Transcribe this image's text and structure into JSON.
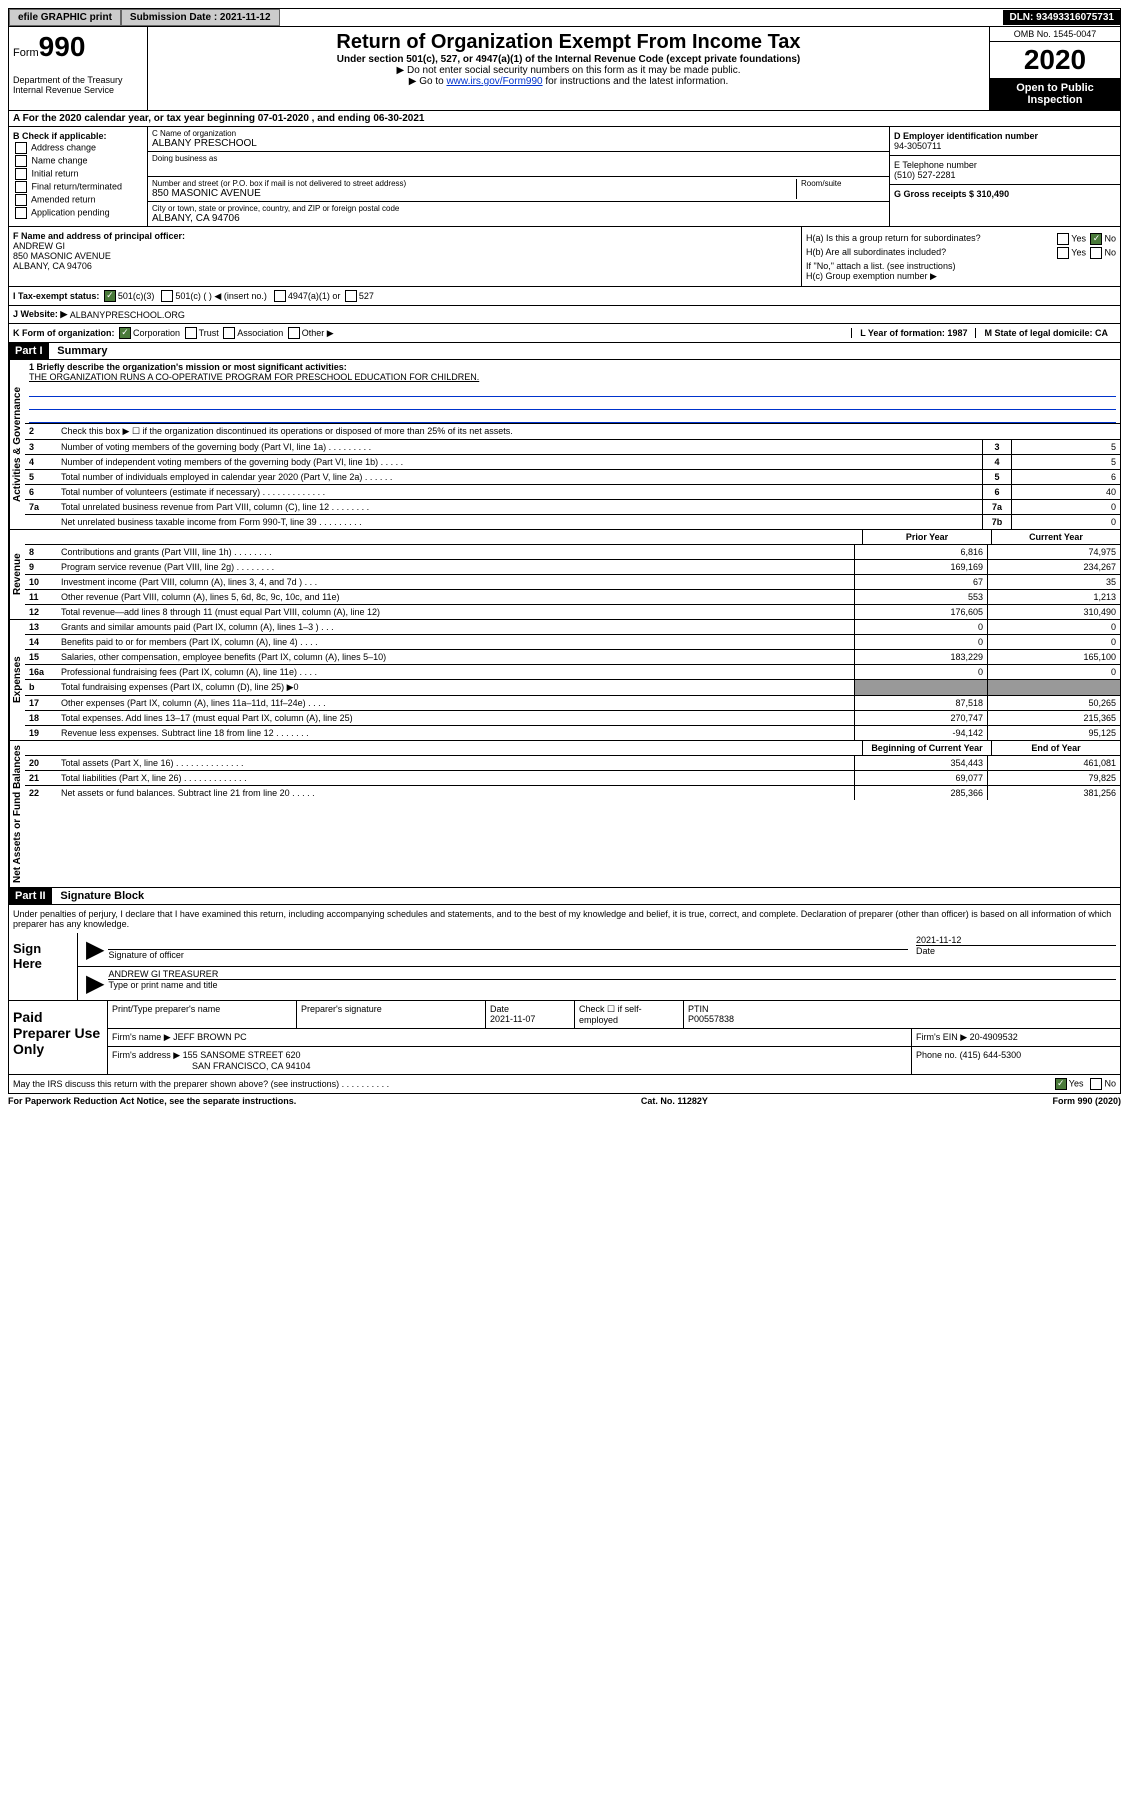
{
  "topbar": {
    "efile_label": "efile GRAPHIC print",
    "submission_label": "Submission Date : 2021-11-12",
    "dln_label": "DLN: 93493316075731"
  },
  "header": {
    "form_label": "Form",
    "form_number": "990",
    "dept": "Department of the Treasury Internal Revenue Service",
    "main_title": "Return of Organization Exempt From Income Tax",
    "sub1": "Under section 501(c), 527, or 4947(a)(1) of the Internal Revenue Code (except private foundations)",
    "sub2": "▶ Do not enter social security numbers on this form as it may be made public.",
    "sub3_prefix": "▶ Go to ",
    "sub3_link": "www.irs.gov/Form990",
    "sub3_suffix": " for instructions and the latest information.",
    "omb": "OMB No. 1545-0047",
    "year": "2020",
    "open_public": "Open to Public Inspection"
  },
  "section_a": "A For the 2020 calendar year, or tax year beginning 07-01-2020    , and ending 06-30-2021",
  "col_b": {
    "header": "B Check if applicable:",
    "opts": [
      "Address change",
      "Name change",
      "Initial return",
      "Final return/terminated",
      "Amended return",
      "Application pending"
    ]
  },
  "org": {
    "name_label": "C Name of organization",
    "name": "ALBANY PRESCHOOL",
    "dba_label": "Doing business as",
    "addr_label": "Number and street (or P.O. box if mail is not delivered to street address)",
    "room_label": "Room/suite",
    "addr": "850 MASONIC AVENUE",
    "city_label": "City or town, state or province, country, and ZIP or foreign postal code",
    "city": "ALBANY, CA  94706"
  },
  "col_de": {
    "d_label": "D Employer identification number",
    "d_val": "94-3050711",
    "e_label": "E Telephone number",
    "e_val": "(510) 527-2281",
    "g_label": "G Gross receipts $ 310,490"
  },
  "f": {
    "label": "F  Name and address of principal officer:",
    "name": "ANDREW GI",
    "addr1": "850 MASONIC AVENUE",
    "addr2": "ALBANY, CA  94706"
  },
  "h": {
    "a_label": "H(a)  Is this a group return for subordinates?",
    "a_yes": "Yes",
    "a_no": "No",
    "b_label": "H(b)  Are all subordinates included?",
    "b_note": "If \"No,\" attach a list. (see instructions)",
    "c_label": "H(c)  Group exemption number ▶"
  },
  "i": {
    "label": "I  Tax-exempt status:",
    "o1": "501(c)(3)",
    "o2": "501(c) (  ) ◀ (insert no.)",
    "o3": "4947(a)(1) or",
    "o4": "527"
  },
  "j": {
    "label": "J  Website: ▶",
    "val": "ALBANYPRESCHOOL.ORG"
  },
  "k": {
    "label": "K Form of organization:",
    "o1": "Corporation",
    "o2": "Trust",
    "o3": "Association",
    "o4": "Other ▶"
  },
  "l": {
    "label": "L Year of formation: 1987"
  },
  "m": {
    "label": "M State of legal domicile: CA"
  },
  "part1": {
    "header": "Part I",
    "title": "Summary",
    "vert1": "Activities & Governance",
    "vert2": "Revenue",
    "vert3": "Expenses",
    "vert4": "Net Assets or Fund Balances",
    "line1_label": "1  Briefly describe the organization's mission or most significant activities:",
    "line1_val": "THE ORGANIZATION RUNS A CO-OPERATIVE PROGRAM FOR PRESCHOOL EDUCATION FOR CHILDREN.",
    "line2": "Check this box ▶ ☐  if the organization discontinued its operations or disposed of more than 25% of its net assets.",
    "lines_a": [
      {
        "n": "3",
        "t": "Number of voting members of the governing body (Part VI, line 1a)   .    .    .    .    .    .    .    .    .",
        "b": "3",
        "v": "5"
      },
      {
        "n": "4",
        "t": "Number of independent voting members of the governing body (Part VI, line 1b)   .    .    .    .    .",
        "b": "4",
        "v": "5"
      },
      {
        "n": "5",
        "t": "Total number of individuals employed in calendar year 2020 (Part V, line 2a)   .    .    .    .    .    .",
        "b": "5",
        "v": "6"
      },
      {
        "n": "6",
        "t": "Total number of volunteers (estimate if necessary)   .    .    .    .    .    .    .    .    .    .    .    .    .",
        "b": "6",
        "v": "40"
      },
      {
        "n": "7a",
        "t": "Total unrelated business revenue from Part VIII, column (C), line 12   .    .    .    .    .    .    .    .",
        "b": "7a",
        "v": "0"
      },
      {
        "n": "",
        "t": "Net unrelated business taxable income from Form 990-T, line 39   .    .    .    .    .    .    .    .    .",
        "b": "7b",
        "v": "0"
      }
    ],
    "col_prior": "Prior Year",
    "col_current": "Current Year",
    "lines_rev": [
      {
        "n": "8",
        "t": "Contributions and grants (Part VIII, line 1h)   .    .    .    .    .    .    .    .",
        "p": "6,816",
        "c": "74,975"
      },
      {
        "n": "9",
        "t": "Program service revenue (Part VIII, line 2g)   .    .    .    .    .    .    .    .",
        "p": "169,169",
        "c": "234,267"
      },
      {
        "n": "10",
        "t": "Investment income (Part VIII, column (A), lines 3, 4, and 7d )   .    .    .",
        "p": "67",
        "c": "35"
      },
      {
        "n": "11",
        "t": "Other revenue (Part VIII, column (A), lines 5, 6d, 8c, 9c, 10c, and 11e)",
        "p": "553",
        "c": "1,213"
      },
      {
        "n": "12",
        "t": "Total revenue—add lines 8 through 11 (must equal Part VIII, column (A), line 12)",
        "p": "176,605",
        "c": "310,490"
      }
    ],
    "lines_exp": [
      {
        "n": "13",
        "t": "Grants and similar amounts paid (Part IX, column (A), lines 1–3 )   .    .    .",
        "p": "0",
        "c": "0"
      },
      {
        "n": "14",
        "t": "Benefits paid to or for members (Part IX, column (A), line 4)   .    .    .    .",
        "p": "0",
        "c": "0"
      },
      {
        "n": "15",
        "t": "Salaries, other compensation, employee benefits (Part IX, column (A), lines 5–10)",
        "p": "183,229",
        "c": "165,100"
      },
      {
        "n": "16a",
        "t": "Professional fundraising fees (Part IX, column (A), line 11e)   .    .    .    .",
        "p": "0",
        "c": "0"
      },
      {
        "n": "b",
        "t": "Total fundraising expenses (Part IX, column (D), line 25) ▶0",
        "p": "",
        "c": "",
        "grey": true
      },
      {
        "n": "17",
        "t": "Other expenses (Part IX, column (A), lines 11a–11d, 11f–24e)   .    .    .    .",
        "p": "87,518",
        "c": "50,265"
      },
      {
        "n": "18",
        "t": "Total expenses. Add lines 13–17 (must equal Part IX, column (A), line 25)",
        "p": "270,747",
        "c": "215,365"
      },
      {
        "n": "19",
        "t": "Revenue less expenses. Subtract line 18 from line 12   .    .    .    .    .    .    .",
        "p": "-94,142",
        "c": "95,125"
      }
    ],
    "col_begin": "Beginning of Current Year",
    "col_end": "End of Year",
    "lines_net": [
      {
        "n": "20",
        "t": "Total assets (Part X, line 16)   .    .    .    .    .    .    .    .    .    .    .    .    .    .",
        "p": "354,443",
        "c": "461,081"
      },
      {
        "n": "21",
        "t": "Total liabilities (Part X, line 26)   .    .    .    .    .    .    .    .    .    .    .    .    .",
        "p": "69,077",
        "c": "79,825"
      },
      {
        "n": "22",
        "t": "Net assets or fund balances. Subtract line 21 from line 20   .    .    .    .    .",
        "p": "285,366",
        "c": "381,256"
      }
    ]
  },
  "part2": {
    "header": "Part II",
    "title": "Signature Block",
    "declaration": "Under penalties of perjury, I declare that I have examined this return, including accompanying schedules and statements, and to the best of my knowledge and belief, it is true, correct, and complete. Declaration of preparer (other than officer) is based on all information of which preparer has any knowledge.",
    "sign_here": "Sign Here",
    "sig_officer": "Signature of officer",
    "sig_date": "2021-11-12",
    "date_label": "Date",
    "officer_name": "ANDREW GI TREASURER",
    "type_print": "Type or print name and title",
    "paid_prep": "Paid Preparer Use Only",
    "prep_name_label": "Print/Type preparer's name",
    "prep_sig_label": "Preparer's signature",
    "prep_date_label": "Date",
    "prep_date": "2021-11-07",
    "check_self": "Check ☐ if self-employed",
    "ptin_label": "PTIN",
    "ptin": "P00557838",
    "firm_name_label": "Firm's name    ▶",
    "firm_name": "JEFF BROWN PC",
    "firm_ein_label": "Firm's EIN ▶",
    "firm_ein": "20-4909532",
    "firm_addr_label": "Firm's address ▶",
    "firm_addr1": "155 SANSOME STREET 620",
    "firm_addr2": "SAN FRANCISCO, CA  94104",
    "phone_label": "Phone no.",
    "phone": "(415) 644-5300",
    "may_irs": "May the IRS discuss this return with the preparer shown above? (see instructions)   .    .    .    .    .    .    .    .    .    .",
    "yes": "Yes",
    "no": "No"
  },
  "footer": {
    "left": "For Paperwork Reduction Act Notice, see the separate instructions.",
    "mid": "Cat. No. 11282Y",
    "right": "Form 990 (2020)"
  }
}
